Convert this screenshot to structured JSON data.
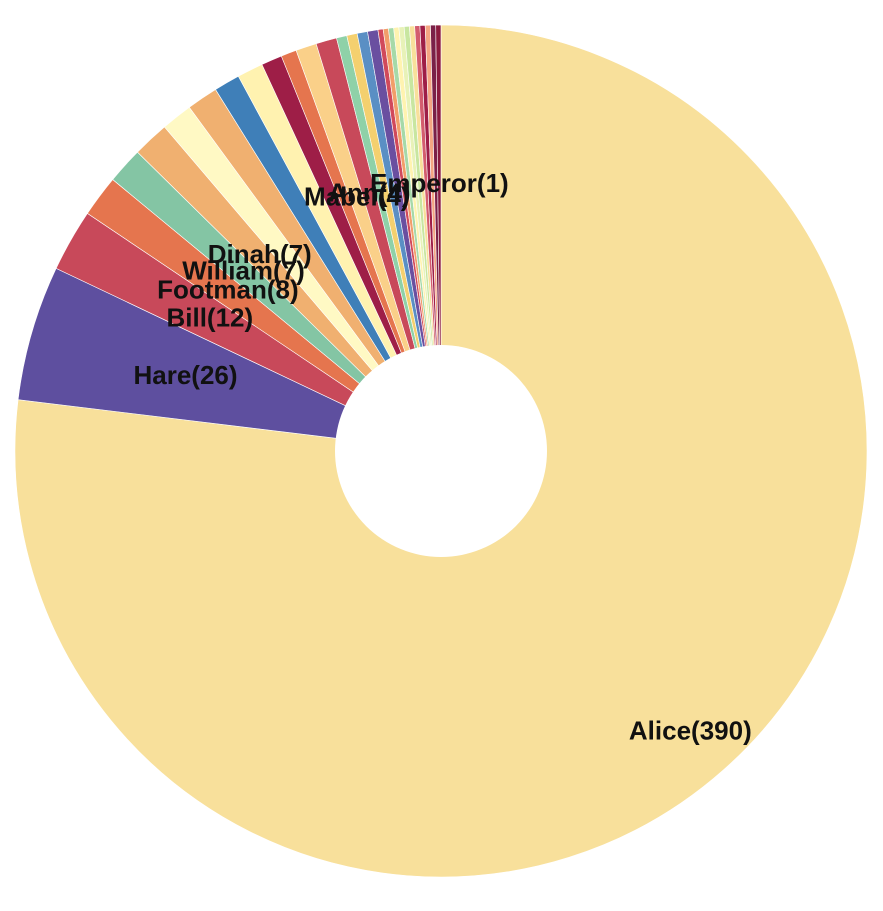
{
  "chart_data": {
    "type": "pie",
    "donut": true,
    "start": "top",
    "direction": "clockwise",
    "label_format": "{name}({value})",
    "slices": [
      {
        "name": "Alice",
        "value": 390,
        "color": "#F8E09B"
      },
      {
        "name": "Hare",
        "value": 26,
        "color": "#5E4F9F"
      },
      {
        "name": "Bill",
        "value": 12,
        "color": "#C8495A"
      },
      {
        "name": "Footman",
        "value": 8,
        "color": "#E5754E"
      },
      {
        "name": "William",
        "value": 7,
        "color": "#84C5A4"
      },
      {
        "name": "Dinah",
        "value": 7,
        "color": "#F0B070"
      },
      {
        "name": "",
        "value": 6,
        "color": "#FFF9C4"
      },
      {
        "name": "",
        "value": 6,
        "color": "#F0B070"
      },
      {
        "name": "",
        "value": 5,
        "color": "#3F7FB8"
      },
      {
        "name": "",
        "value": 5,
        "color": "#FFF2B0"
      },
      {
        "name": "",
        "value": 4,
        "color": "#9E1E47"
      },
      {
        "name": "",
        "value": 3,
        "color": "#E5754E"
      },
      {
        "name": "Mabel",
        "value": 4,
        "color": "#FAD089"
      },
      {
        "name": "Ann",
        "value": 4,
        "color": "#C8495A"
      },
      {
        "name": "",
        "value": 2,
        "color": "#8FD1A8"
      },
      {
        "name": "",
        "value": 2,
        "color": "#F4D06F"
      },
      {
        "name": "",
        "value": 2,
        "color": "#5A8FC4"
      },
      {
        "name": "",
        "value": 2,
        "color": "#6A4FA0"
      },
      {
        "name": "",
        "value": 1,
        "color": "#D1495B"
      },
      {
        "name": "",
        "value": 1,
        "color": "#F29E6A"
      },
      {
        "name": "",
        "value": 1,
        "color": "#A6D9A8"
      },
      {
        "name": "",
        "value": 1,
        "color": "#FFF3B0"
      },
      {
        "name": "",
        "value": 1,
        "color": "#E8F2B8"
      },
      {
        "name": "",
        "value": 1,
        "color": "#C8E6A0"
      },
      {
        "name": "",
        "value": 1,
        "color": "#F8E09B"
      },
      {
        "name": "",
        "value": 1,
        "color": "#D35D6E"
      },
      {
        "name": "",
        "value": 1,
        "color": "#9E1E47"
      },
      {
        "name": "",
        "value": 1,
        "color": "#F4A582"
      },
      {
        "name": "",
        "value": 1,
        "color": "#7A2048"
      },
      {
        "name": "Emperor",
        "value": 1,
        "color": "#8B1A3E"
      }
    ]
  }
}
